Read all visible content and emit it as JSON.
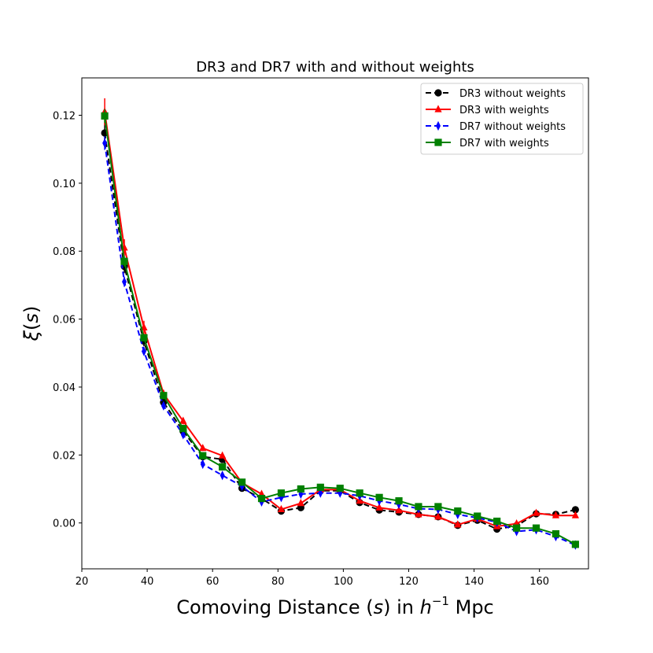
{
  "chart_data": {
    "type": "line",
    "title": "DR3 and DR7 with and without weights",
    "xlabel": "Comoving Distance (s) in h⁻¹ Mpc",
    "xlabel_parts": {
      "pre": "Comoving Distance (",
      "var": "s",
      "mid": ") in ",
      "h": "h",
      "exp": "−1",
      "post": " Mpc"
    },
    "ylabel": "ξ(s)",
    "ylabel_parts": {
      "xi": "ξ",
      "open": "(",
      "var": "s",
      "close": ")"
    },
    "xlim": [
      20,
      175
    ],
    "ylim": [
      -0.0135,
      0.131
    ],
    "xticks": [
      20,
      40,
      60,
      80,
      100,
      120,
      140,
      160
    ],
    "yticks": [
      0.0,
      0.02,
      0.04,
      0.06,
      0.08,
      0.1,
      0.12
    ],
    "xtick_labels": [
      "20",
      "40",
      "60",
      "80",
      "100",
      "120",
      "140",
      "160"
    ],
    "ytick_labels": [
      "0.00",
      "0.02",
      "0.04",
      "0.06",
      "0.08",
      "0.10",
      "0.12"
    ],
    "legend_position": "top-right",
    "x": [
      27,
      33,
      39,
      45,
      51,
      57,
      63,
      69,
      75,
      81,
      87,
      93,
      99,
      105,
      111,
      117,
      123,
      129,
      135,
      141,
      147,
      153,
      159,
      165,
      171
    ],
    "series": [
      {
        "name": "DR3 without weights",
        "color": "#000000",
        "dashed": true,
        "marker": "circle",
        "values": [
          0.1148,
          0.0755,
          0.0535,
          0.0355,
          0.027,
          0.0195,
          0.0187,
          0.0102,
          0.0072,
          0.0035,
          0.0045,
          0.0095,
          0.0095,
          0.006,
          0.0038,
          0.0032,
          0.0025,
          0.0018,
          -0.0007,
          0.0008,
          -0.0018,
          -0.0008,
          0.0027,
          0.0025,
          0.0039
        ],
        "errors": [
          0.003,
          0.002,
          0.0015,
          0.001,
          0.0008,
          0.0007,
          0.0006,
          0.0005,
          0.0005,
          0.0005,
          0.0005,
          0.0005,
          0.0005,
          0.0005,
          0.0005,
          0.0005,
          0.0005,
          0.0005,
          0.0005,
          0.0005,
          0.0005,
          0.0005,
          0.0005,
          0.0005,
          0.0005
        ]
      },
      {
        "name": "DR3 with weights",
        "color": "#ff0000",
        "dashed": false,
        "marker": "triangle",
        "values": [
          0.121,
          0.081,
          0.0575,
          0.038,
          0.03,
          0.022,
          0.0198,
          0.0118,
          0.0085,
          0.004,
          0.0058,
          0.0098,
          0.0098,
          0.0065,
          0.0045,
          0.0037,
          0.0025,
          0.0018,
          -0.0005,
          0.0012,
          -0.001,
          -0.0002,
          0.0029,
          0.0022,
          0.0022
        ],
        "errors": [
          0.004,
          0.0025,
          0.002,
          0.0012,
          0.001,
          0.0008,
          0.0007,
          0.0006,
          0.0005,
          0.0005,
          0.0005,
          0.0005,
          0.0005,
          0.0005,
          0.0005,
          0.0005,
          0.0005,
          0.0005,
          0.0005,
          0.0005,
          0.0005,
          0.0005,
          0.0005,
          0.0005,
          0.0005
        ]
      },
      {
        "name": "DR7 without weights",
        "color": "#0000ff",
        "dashed": true,
        "marker": "diamond",
        "values": [
          0.1118,
          0.071,
          0.0505,
          0.0345,
          0.026,
          0.0173,
          0.014,
          0.0108,
          0.0062,
          0.0075,
          0.0085,
          0.0088,
          0.0088,
          0.008,
          0.0065,
          0.0055,
          0.0042,
          0.004,
          0.0025,
          0.0015,
          0.0002,
          -0.0025,
          -0.002,
          -0.004,
          -0.0065
        ],
        "errors": [
          0.002,
          0.0015,
          0.001,
          0.0008,
          0.0006,
          0.0005,
          0.0005,
          0.0004,
          0.0004,
          0.0004,
          0.0004,
          0.0004,
          0.0004,
          0.0004,
          0.0004,
          0.0004,
          0.0004,
          0.0004,
          0.0004,
          0.0004,
          0.0004,
          0.0004,
          0.0004,
          0.0004,
          0.0004
        ]
      },
      {
        "name": "DR7 with weights",
        "color": "#008000",
        "dashed": false,
        "marker": "square",
        "values": [
          0.1198,
          0.077,
          0.0545,
          0.0375,
          0.0278,
          0.0198,
          0.0165,
          0.012,
          0.0072,
          0.0088,
          0.01,
          0.0105,
          0.0102,
          0.0088,
          0.0075,
          0.0065,
          0.0048,
          0.0048,
          0.0035,
          0.002,
          0.0005,
          -0.0015,
          -0.0015,
          -0.0032,
          -0.0063
        ],
        "errors": [
          0.002,
          0.0015,
          0.001,
          0.0008,
          0.0006,
          0.0005,
          0.0005,
          0.0004,
          0.0004,
          0.0004,
          0.0004,
          0.0004,
          0.0004,
          0.0004,
          0.0004,
          0.0004,
          0.0004,
          0.0004,
          0.0004,
          0.0004,
          0.0004,
          0.0004,
          0.0004,
          0.0004,
          0.0004
        ]
      }
    ]
  }
}
